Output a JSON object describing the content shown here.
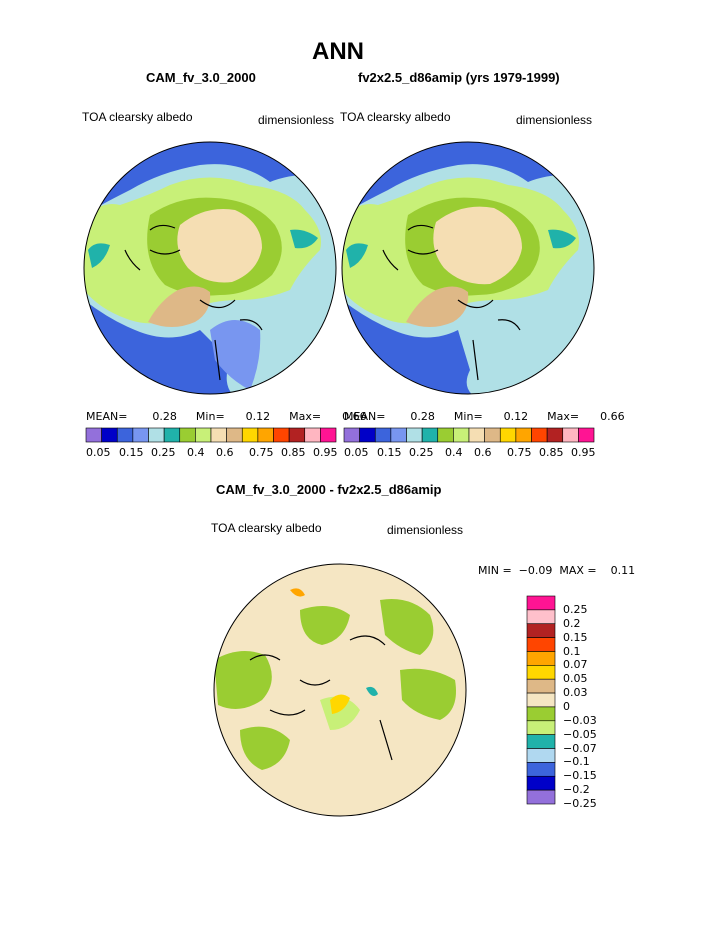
{
  "page": {
    "title": "ANN",
    "diff_title": "CAM_fv_3.0_2000 - fv2x2.5_d86amip"
  },
  "colors": {
    "abs_palette": [
      "#9370db",
      "#0000c8",
      "#3c64dc",
      "#7896f0",
      "#b0e0e6",
      "#20b2aa",
      "#9acd32",
      "#c8f078",
      "#f5deb3",
      "#deb887",
      "#ffd700",
      "#ffa500",
      "#ff4500",
      "#b22222",
      "#ffb6c1",
      "#ff1493"
    ],
    "diff_palette": [
      "#9370db",
      "#0000c8",
      "#3c64dc",
      "#b0d8f0",
      "#20b2aa",
      "#c8f078",
      "#9acd32",
      "#f5e6c3",
      "#deb887",
      "#ffd700",
      "#ffa500",
      "#ff4500",
      "#b22222",
      "#ffc0cb",
      "#ff1493"
    ],
    "land_outline": "#000000",
    "ocean_base": "#b0e0e6",
    "deep": "#3c64dc",
    "green": "#9acd32",
    "light_green": "#c8f078",
    "cream": "#f5deb3",
    "tan": "#deb887"
  },
  "panels": [
    {
      "id": "left",
      "case_title": "CAM_fv_3.0_2000",
      "field_label": "TOA clearsky albedo",
      "units_label": "dimensionless",
      "mean_label": "MEAN=",
      "mean_value": "0.28",
      "min_label": "Min=",
      "min_value": "0.12",
      "max_label": "Max=",
      "max_value": "0.66"
    },
    {
      "id": "right",
      "case_title": "fv2x2.5_d86amip (yrs 1979-1999)",
      "field_label": "TOA clearsky albedo",
      "units_label": "dimensionless",
      "mean_label": "MEAN=",
      "mean_value": "0.28",
      "min_label": "Min=",
      "min_value": "0.12",
      "max_label": "Max=",
      "max_value": "0.66"
    }
  ],
  "abs_colorbar_ticks": [
    "0.05",
    "0.15",
    "0.25",
    "0.4",
    "0.6",
    "0.75",
    "0.85",
    "0.95"
  ],
  "diff": {
    "field_label": "TOA clearsky albedo",
    "units_label": "dimensionless",
    "minmax_text": "MIN =  −0.09  MAX =    0.11",
    "colorbar_ticks": [
      "0.25",
      "0.2",
      "0.15",
      "0.1",
      "0.07",
      "0.05",
      "0.03",
      "0",
      "−0.03",
      "−0.05",
      "−0.07",
      "−0.1",
      "−0.15",
      "−0.2",
      "−0.25"
    ]
  }
}
